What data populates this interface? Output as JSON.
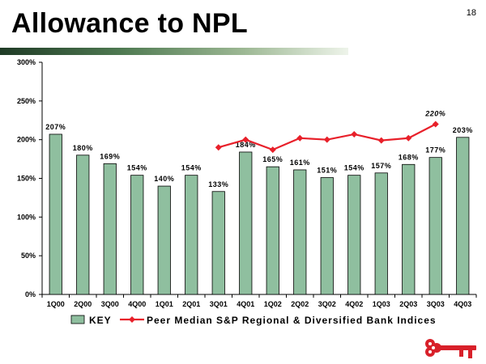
{
  "slide": {
    "title": "Allowance to NPL",
    "page_number": "18"
  },
  "colors": {
    "bar_fill": "#8fbf9f",
    "bar_stroke": "#000000",
    "line_color": "#e8202a",
    "title_rule_dark": "#1f3b26"
  },
  "chart_data": {
    "type": "bar",
    "categories": [
      "1Q00",
      "2Q00",
      "3Q00",
      "4Q00",
      "1Q01",
      "2Q01",
      "3Q01",
      "4Q01",
      "1Q02",
      "2Q02",
      "3Q02",
      "4Q02",
      "1Q03",
      "2Q03",
      "3Q03",
      "4Q03"
    ],
    "series": [
      {
        "name": "KEY",
        "type": "bar",
        "values": [
          207,
          180,
          169,
          154,
          140,
          154,
          133,
          184,
          165,
          161,
          151,
          154,
          157,
          168,
          177,
          203
        ],
        "labels": [
          "207%",
          "180%",
          "169%",
          "154%",
          "140%",
          "154%",
          "133%",
          "184%",
          "165%",
          "161%",
          "151%",
          "154%",
          "157%",
          "168%",
          "177%",
          "203%"
        ]
      },
      {
        "name": "Peer Median S&P Regional & Diversified Bank Indices",
        "type": "line",
        "values": [
          null,
          null,
          null,
          null,
          null,
          null,
          190,
          200,
          187,
          202,
          200,
          207,
          199,
          202,
          220,
          null
        ],
        "labels": [
          "",
          "",
          "",
          "",
          "",
          "",
          "",
          "",
          "",
          "",
          "",
          "",
          "",
          "",
          "220%",
          ""
        ]
      }
    ],
    "y_ticks": [
      "0%",
      "50%",
      "100%",
      "150%",
      "200%",
      "250%",
      "300%"
    ],
    "ylim": [
      0,
      300
    ],
    "legend_position": "bottom",
    "grid": false
  },
  "logo": {
    "icon": "key-logo-icon"
  }
}
